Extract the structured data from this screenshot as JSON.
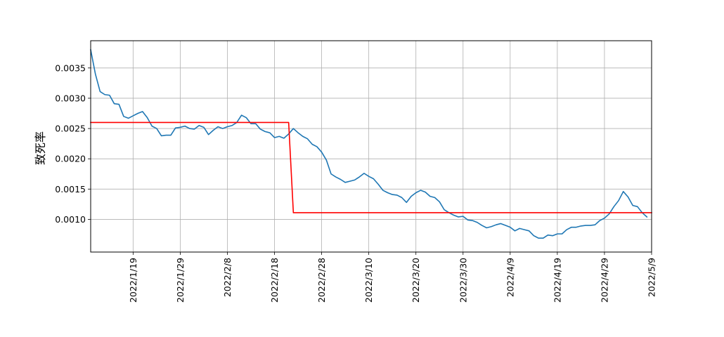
{
  "chart_data": {
    "type": "line",
    "xlabel": "",
    "ylabel": "致死率",
    "x_tick_labels": [
      "2022/1/19",
      "2022/1/29",
      "2022/2/8",
      "2022/2/18",
      "2022/2/28",
      "2022/3/10",
      "2022/3/20",
      "2022/3/30",
      "2022/4/9",
      "2022/4/19",
      "2022/4/29",
      "2022/5/9"
    ],
    "y_tick_labels": [
      "0.0010",
      "0.0015",
      "0.0020",
      "0.0025",
      "0.0030",
      "0.0035"
    ],
    "xlim": [
      "2022/1/10",
      "2022/5/9"
    ],
    "ylim": [
      0.00046,
      0.00395
    ],
    "grid": true,
    "legend": "none",
    "colors": {
      "series1": "#1f77b4",
      "series2": "#ff0000",
      "grid": "#b0b0b0"
    },
    "series": [
      {
        "color": "#1f77b4",
        "points": [
          [
            "2022/1/10",
            0.0038
          ],
          [
            "2022/1/11",
            0.0034
          ],
          [
            "2022/1/12",
            0.00311
          ],
          [
            "2022/1/13",
            0.00306
          ],
          [
            "2022/1/14",
            0.00305
          ],
          [
            "2022/1/15",
            0.00291
          ],
          [
            "2022/1/16",
            0.0029
          ],
          [
            "2022/1/17",
            0.0027
          ],
          [
            "2022/1/18",
            0.00267
          ],
          [
            "2022/1/19",
            0.00271
          ],
          [
            "2022/1/20",
            0.00275
          ],
          [
            "2022/1/21",
            0.00278
          ],
          [
            "2022/1/22",
            0.00268
          ],
          [
            "2022/1/23",
            0.00254
          ],
          [
            "2022/1/24",
            0.0025
          ],
          [
            "2022/1/25",
            0.00238
          ],
          [
            "2022/1/26",
            0.00239
          ],
          [
            "2022/1/27",
            0.00239
          ],
          [
            "2022/1/28",
            0.00251
          ],
          [
            "2022/1/29",
            0.00252
          ],
          [
            "2022/1/30",
            0.00254
          ],
          [
            "2022/1/31",
            0.0025
          ],
          [
            "2022/2/1",
            0.00249
          ],
          [
            "2022/2/2",
            0.00255
          ],
          [
            "2022/2/3",
            0.00252
          ],
          [
            "2022/2/4",
            0.0024
          ],
          [
            "2022/2/5",
            0.00247
          ],
          [
            "2022/2/6",
            0.00253
          ],
          [
            "2022/2/7",
            0.0025
          ],
          [
            "2022/2/8",
            0.00253
          ],
          [
            "2022/2/9",
            0.00255
          ],
          [
            "2022/2/10",
            0.0026
          ],
          [
            "2022/2/11",
            0.00272
          ],
          [
            "2022/2/12",
            0.00268
          ],
          [
            "2022/2/13",
            0.00258
          ],
          [
            "2022/2/14",
            0.00258
          ],
          [
            "2022/2/15",
            0.00249
          ],
          [
            "2022/2/16",
            0.00245
          ],
          [
            "2022/2/17",
            0.00243
          ],
          [
            "2022/2/18",
            0.00235
          ],
          [
            "2022/2/19",
            0.00237
          ],
          [
            "2022/2/20",
            0.00234
          ],
          [
            "2022/2/21",
            0.00241
          ],
          [
            "2022/2/22",
            0.0025
          ],
          [
            "2022/2/23",
            0.00243
          ],
          [
            "2022/2/24",
            0.00237
          ],
          [
            "2022/2/25",
            0.00233
          ],
          [
            "2022/2/26",
            0.00224
          ],
          [
            "2022/2/27",
            0.0022
          ],
          [
            "2022/2/28",
            0.00211
          ],
          [
            "2022/3/1",
            0.00198
          ],
          [
            "2022/3/2",
            0.00175
          ],
          [
            "2022/3/3",
            0.0017
          ],
          [
            "2022/3/4",
            0.00166
          ],
          [
            "2022/3/5",
            0.00161
          ],
          [
            "2022/3/6",
            0.00163
          ],
          [
            "2022/3/7",
            0.00165
          ],
          [
            "2022/3/8",
            0.0017
          ],
          [
            "2022/3/9",
            0.00176
          ],
          [
            "2022/3/10",
            0.00171
          ],
          [
            "2022/3/11",
            0.00167
          ],
          [
            "2022/3/12",
            0.00158
          ],
          [
            "2022/3/13",
            0.00148
          ],
          [
            "2022/3/14",
            0.00144
          ],
          [
            "2022/3/15",
            0.00141
          ],
          [
            "2022/3/16",
            0.0014
          ],
          [
            "2022/3/17",
            0.00136
          ],
          [
            "2022/3/18",
            0.00128
          ],
          [
            "2022/3/19",
            0.00138
          ],
          [
            "2022/3/20",
            0.00144
          ],
          [
            "2022/3/21",
            0.00148
          ],
          [
            "2022/3/22",
            0.00145
          ],
          [
            "2022/3/23",
            0.00138
          ],
          [
            "2022/3/24",
            0.00136
          ],
          [
            "2022/3/25",
            0.00129
          ],
          [
            "2022/3/26",
            0.00116
          ],
          [
            "2022/3/27",
            0.00111
          ],
          [
            "2022/3/28",
            0.00107
          ],
          [
            "2022/3/29",
            0.00104
          ],
          [
            "2022/3/30",
            0.00105
          ],
          [
            "2022/3/31",
            0.00099
          ],
          [
            "2022/4/1",
            0.00098
          ],
          [
            "2022/4/2",
            0.00095
          ],
          [
            "2022/4/3",
            0.0009
          ],
          [
            "2022/4/4",
            0.00086
          ],
          [
            "2022/4/5",
            0.00088
          ],
          [
            "2022/4/6",
            0.00091
          ],
          [
            "2022/4/7",
            0.00093
          ],
          [
            "2022/4/8",
            0.0009
          ],
          [
            "2022/4/9",
            0.00087
          ],
          [
            "2022/4/10",
            0.00081
          ],
          [
            "2022/4/11",
            0.00085
          ],
          [
            "2022/4/12",
            0.00083
          ],
          [
            "2022/4/13",
            0.00081
          ],
          [
            "2022/4/14",
            0.00073
          ],
          [
            "2022/4/15",
            0.00069
          ],
          [
            "2022/4/16",
            0.00069
          ],
          [
            "2022/4/17",
            0.00074
          ],
          [
            "2022/4/18",
            0.00073
          ],
          [
            "2022/4/19",
            0.00076
          ],
          [
            "2022/4/20",
            0.00076
          ],
          [
            "2022/4/21",
            0.00083
          ],
          [
            "2022/4/22",
            0.00087
          ],
          [
            "2022/4/23",
            0.00087
          ],
          [
            "2022/4/24",
            0.00089
          ],
          [
            "2022/4/25",
            0.0009
          ],
          [
            "2022/4/26",
            0.0009
          ],
          [
            "2022/4/27",
            0.00091
          ],
          [
            "2022/4/28",
            0.00098
          ],
          [
            "2022/4/29",
            0.00102
          ],
          [
            "2022/4/30",
            0.00109
          ],
          [
            "2022/5/1",
            0.00121
          ],
          [
            "2022/5/2",
            0.00131
          ],
          [
            "2022/5/3",
            0.00146
          ],
          [
            "2022/5/4",
            0.00137
          ],
          [
            "2022/5/5",
            0.00123
          ],
          [
            "2022/5/6",
            0.00121
          ],
          [
            "2022/5/7",
            0.00111
          ],
          [
            "2022/5/8",
            0.00104
          ]
        ]
      },
      {
        "color": "#ff0000",
        "points": [
          [
            "2022/1/10",
            0.0026
          ],
          [
            "2022/2/21",
            0.0026
          ],
          [
            "2022/2/22",
            0.00111
          ],
          [
            "2022/5/9",
            0.00111
          ]
        ]
      }
    ]
  }
}
